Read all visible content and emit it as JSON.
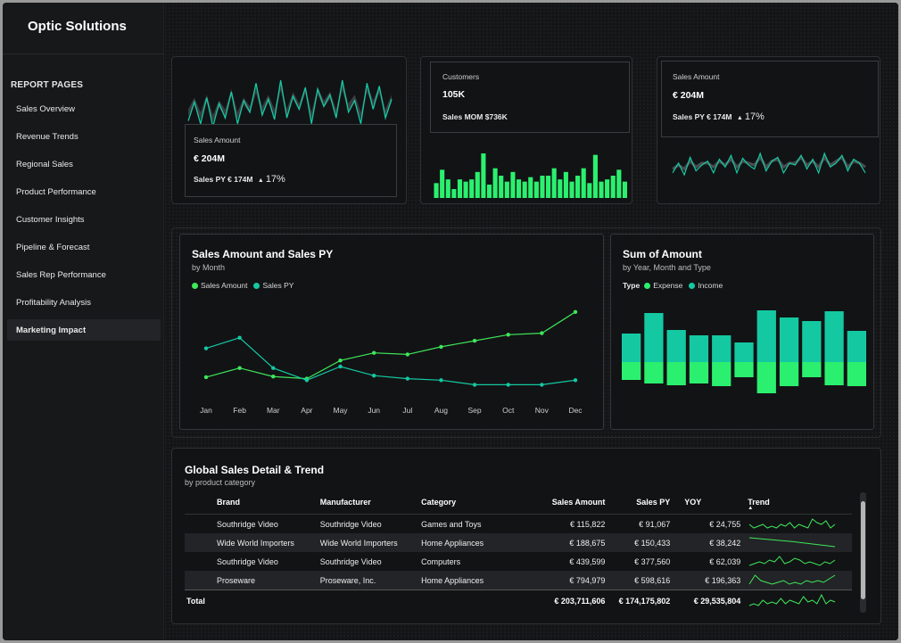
{
  "app": {
    "title": "Optic Solutions"
  },
  "sidebar": {
    "section": "REPORT PAGES",
    "items": [
      {
        "label": "Sales Overview"
      },
      {
        "label": "Revenue Trends"
      },
      {
        "label": "Regional Sales"
      },
      {
        "label": "Product Performance"
      },
      {
        "label": "Customer Insights"
      },
      {
        "label": "Pipeline & Forecast"
      },
      {
        "label": "Sales Rep Performance"
      },
      {
        "label": "Profitability Analysis"
      },
      {
        "label": "Marketing Impact",
        "active": true
      }
    ]
  },
  "kpi1": {
    "label": "Sales Amount",
    "value": "€ 204M",
    "prior_label": "Sales PY",
    "prior_value": "€ 174M",
    "change": "17%"
  },
  "kpi2": {
    "label": "Customers",
    "value": "105K",
    "mom_label": "Sales MOM",
    "mom_value": "$736K"
  },
  "kpi3": {
    "label": "Sales Amount",
    "value": "€ 204M",
    "prior_label": "Sales PY",
    "prior_value": "€ 174M",
    "change": "17%"
  },
  "colors": {
    "green": "#3ee85a",
    "teal": "#14c9a2",
    "bright_green": "#2bf06f",
    "background": "#131416"
  },
  "line_chart": {
    "title": "Sales Amount and Sales PY",
    "subtitle": "by Month",
    "legend": [
      "Sales Amount",
      "Sales PY"
    ]
  },
  "bar_chart": {
    "title": "Sum of Amount",
    "subtitle": "by Year, Month and Type",
    "legend_title": "Type",
    "legend": [
      "Expense",
      "Income"
    ]
  },
  "chart_data": [
    {
      "type": "line",
      "title": "Sales Amount and Sales PY",
      "subtitle": "by Month",
      "x": [
        "Jan",
        "Feb",
        "Mar",
        "Apr",
        "May",
        "Jun",
        "Jul",
        "Aug",
        "Sep",
        "Oct",
        "Nov",
        "Dec"
      ],
      "ylim": [
        0,
        30
      ],
      "grid": false,
      "legend_position": "top-left",
      "series": [
        {
          "name": "Sales Amount",
          "values": [
            6.5,
            9.5,
            6.7,
            6.0,
            12.0,
            14.5,
            14.0,
            16.5,
            18.5,
            20.5,
            21.0,
            28.0
          ]
        },
        {
          "name": "Sales PY",
          "values": [
            16.0,
            19.5,
            9.5,
            5.5,
            10.0,
            7.0,
            6.0,
            5.5,
            4.0,
            4.0,
            4.0,
            5.5
          ]
        }
      ]
    },
    {
      "type": "bar",
      "title": "Sum of Amount",
      "subtitle": "by Year, Month and Type",
      "legend_position": "top-left",
      "series": [
        {
          "name": "Income",
          "values": [
            32,
            55,
            36,
            30,
            30,
            22,
            58,
            50,
            46,
            57,
            35
          ]
        },
        {
          "name": "Expense",
          "values": [
            -20,
            -24,
            -26,
            -24,
            -27,
            -17,
            -35,
            -27,
            -17,
            -26,
            -27
          ]
        }
      ]
    }
  ],
  "sparklines": {
    "kpi1_current": [
      32,
      45,
      30,
      48,
      28,
      44,
      34,
      52,
      30,
      46,
      38,
      58,
      36,
      47,
      33,
      60,
      34,
      49,
      40,
      55,
      30,
      54,
      42,
      50,
      34,
      60,
      38,
      46,
      30,
      58,
      40,
      56,
      34,
      47
    ],
    "kpi1_prior": [
      40,
      48,
      38,
      50,
      36,
      46,
      40,
      54,
      38,
      48,
      42,
      56,
      42,
      50,
      40,
      58,
      40,
      52,
      44,
      56,
      38,
      55,
      46,
      52,
      40,
      58,
      44,
      50,
      38,
      57,
      46,
      56,
      40,
      50
    ],
    "kpi2_bars": [
      20,
      38,
      25,
      12,
      25,
      22,
      25,
      35,
      60,
      18,
      40,
      30,
      22,
      35,
      25,
      22,
      28,
      22,
      30,
      30,
      40,
      25,
      35,
      22,
      30,
      40,
      20,
      58,
      22,
      25,
      30,
      38,
      22
    ],
    "kpi3_current": [
      30,
      40,
      28,
      46,
      32,
      38,
      42,
      30,
      44,
      36,
      48,
      30,
      45,
      38,
      34,
      50,
      32,
      42,
      46,
      30,
      40,
      38,
      48,
      34,
      44,
      30,
      50,
      36,
      40,
      48,
      32,
      44,
      40,
      30
    ],
    "kpi3_prior": [
      34,
      38,
      34,
      42,
      36,
      40,
      40,
      36,
      42,
      38,
      44,
      36,
      42,
      40,
      38,
      46,
      36,
      42,
      44,
      36,
      40,
      40,
      46,
      38,
      42,
      36,
      46,
      38,
      42,
      46,
      36,
      42,
      40,
      36
    ]
  },
  "table": {
    "title": "Global Sales Detail & Trend",
    "subtitle": "by product category",
    "columns": [
      "Brand",
      "Manufacturer",
      "Category",
      "Sales Amount",
      "Sales PY",
      "YOY",
      "Trend"
    ],
    "rows": [
      {
        "brand": "Southridge Video",
        "manufacturer": "Southridge Video",
        "category": "Games and Toys",
        "sales": "€ 115,822",
        "py": "€ 91,067",
        "yoy": "€ 24,755",
        "trend": [
          6,
          4,
          5,
          6,
          4,
          5,
          4,
          6,
          5,
          7,
          4,
          6,
          5,
          4,
          9,
          7,
          6,
          8,
          4,
          6
        ]
      },
      {
        "brand": "Wide World Importers",
        "manufacturer": "Wide World Importers",
        "category": "Home Appliances",
        "sales": "€ 188,675",
        "py": "€ 150,433",
        "yoy": "€ 38,242",
        "trend": [
          9,
          6,
          2
        ]
      },
      {
        "brand": "Southridge Video",
        "manufacturer": "Southridge Video",
        "category": "Computers",
        "sales": "€ 439,599",
        "py": "€ 377,560",
        "yoy": "€ 62,039",
        "trend": [
          3,
          4,
          5,
          4,
          6,
          5,
          8,
          4,
          5,
          7,
          6,
          4,
          5,
          4,
          3,
          5,
          4,
          6
        ]
      },
      {
        "brand": "Proseware",
        "manufacturer": "Proseware, Inc.",
        "category": "Home Appliances",
        "sales": "€ 794,979",
        "py": "€ 598,616",
        "yoy": "€ 196,363",
        "trend": [
          4,
          9,
          6,
          5,
          4,
          5,
          6,
          4,
          5,
          4,
          6,
          5,
          6,
          5,
          7,
          9
        ]
      }
    ],
    "total": {
      "label": "Total",
      "sales": "€ 203,711,606",
      "py": "€ 174,175,802",
      "yoy": "€ 29,535,804",
      "trend": [
        3,
        4,
        3,
        6,
        4,
        5,
        4,
        7,
        4,
        6,
        5,
        4,
        8,
        5,
        6,
        4,
        9,
        4,
        6,
        5
      ]
    }
  }
}
